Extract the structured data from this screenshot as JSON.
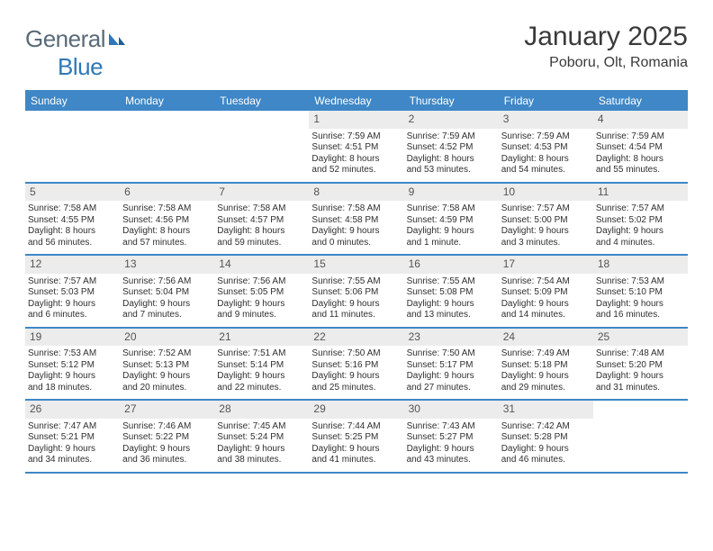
{
  "brand": {
    "part1": "General",
    "part2": "Blue"
  },
  "title": "January 2025",
  "location": "Poboru, Olt, Romania",
  "colors": {
    "header_bg": "#3f87c6",
    "daynum_bg": "#ececec",
    "rule": "#3f87c6",
    "text": "#2f2f2f",
    "title": "#3a3a3a",
    "logo_gray": "#5a6a78",
    "logo_blue": "#2f78b7"
  },
  "weekdays": [
    "Sunday",
    "Monday",
    "Tuesday",
    "Wednesday",
    "Thursday",
    "Friday",
    "Saturday"
  ],
  "cells": [
    {
      "day": "",
      "lines": [
        "",
        "",
        "",
        ""
      ]
    },
    {
      "day": "",
      "lines": [
        "",
        "",
        "",
        ""
      ]
    },
    {
      "day": "",
      "lines": [
        "",
        "",
        "",
        ""
      ]
    },
    {
      "day": "1",
      "lines": [
        "Sunrise: 7:59 AM",
        "Sunset: 4:51 PM",
        "Daylight: 8 hours",
        "and 52 minutes."
      ]
    },
    {
      "day": "2",
      "lines": [
        "Sunrise: 7:59 AM",
        "Sunset: 4:52 PM",
        "Daylight: 8 hours",
        "and 53 minutes."
      ]
    },
    {
      "day": "3",
      "lines": [
        "Sunrise: 7:59 AM",
        "Sunset: 4:53 PM",
        "Daylight: 8 hours",
        "and 54 minutes."
      ]
    },
    {
      "day": "4",
      "lines": [
        "Sunrise: 7:59 AM",
        "Sunset: 4:54 PM",
        "Daylight: 8 hours",
        "and 55 minutes."
      ]
    },
    {
      "day": "5",
      "lines": [
        "Sunrise: 7:58 AM",
        "Sunset: 4:55 PM",
        "Daylight: 8 hours",
        "and 56 minutes."
      ]
    },
    {
      "day": "6",
      "lines": [
        "Sunrise: 7:58 AM",
        "Sunset: 4:56 PM",
        "Daylight: 8 hours",
        "and 57 minutes."
      ]
    },
    {
      "day": "7",
      "lines": [
        "Sunrise: 7:58 AM",
        "Sunset: 4:57 PM",
        "Daylight: 8 hours",
        "and 59 minutes."
      ]
    },
    {
      "day": "8",
      "lines": [
        "Sunrise: 7:58 AM",
        "Sunset: 4:58 PM",
        "Daylight: 9 hours",
        "and 0 minutes."
      ]
    },
    {
      "day": "9",
      "lines": [
        "Sunrise: 7:58 AM",
        "Sunset: 4:59 PM",
        "Daylight: 9 hours",
        "and 1 minute."
      ]
    },
    {
      "day": "10",
      "lines": [
        "Sunrise: 7:57 AM",
        "Sunset: 5:00 PM",
        "Daylight: 9 hours",
        "and 3 minutes."
      ]
    },
    {
      "day": "11",
      "lines": [
        "Sunrise: 7:57 AM",
        "Sunset: 5:02 PM",
        "Daylight: 9 hours",
        "and 4 minutes."
      ]
    },
    {
      "day": "12",
      "lines": [
        "Sunrise: 7:57 AM",
        "Sunset: 5:03 PM",
        "Daylight: 9 hours",
        "and 6 minutes."
      ]
    },
    {
      "day": "13",
      "lines": [
        "Sunrise: 7:56 AM",
        "Sunset: 5:04 PM",
        "Daylight: 9 hours",
        "and 7 minutes."
      ]
    },
    {
      "day": "14",
      "lines": [
        "Sunrise: 7:56 AM",
        "Sunset: 5:05 PM",
        "Daylight: 9 hours",
        "and 9 minutes."
      ]
    },
    {
      "day": "15",
      "lines": [
        "Sunrise: 7:55 AM",
        "Sunset: 5:06 PM",
        "Daylight: 9 hours",
        "and 11 minutes."
      ]
    },
    {
      "day": "16",
      "lines": [
        "Sunrise: 7:55 AM",
        "Sunset: 5:08 PM",
        "Daylight: 9 hours",
        "and 13 minutes."
      ]
    },
    {
      "day": "17",
      "lines": [
        "Sunrise: 7:54 AM",
        "Sunset: 5:09 PM",
        "Daylight: 9 hours",
        "and 14 minutes."
      ]
    },
    {
      "day": "18",
      "lines": [
        "Sunrise: 7:53 AM",
        "Sunset: 5:10 PM",
        "Daylight: 9 hours",
        "and 16 minutes."
      ]
    },
    {
      "day": "19",
      "lines": [
        "Sunrise: 7:53 AM",
        "Sunset: 5:12 PM",
        "Daylight: 9 hours",
        "and 18 minutes."
      ]
    },
    {
      "day": "20",
      "lines": [
        "Sunrise: 7:52 AM",
        "Sunset: 5:13 PM",
        "Daylight: 9 hours",
        "and 20 minutes."
      ]
    },
    {
      "day": "21",
      "lines": [
        "Sunrise: 7:51 AM",
        "Sunset: 5:14 PM",
        "Daylight: 9 hours",
        "and 22 minutes."
      ]
    },
    {
      "day": "22",
      "lines": [
        "Sunrise: 7:50 AM",
        "Sunset: 5:16 PM",
        "Daylight: 9 hours",
        "and 25 minutes."
      ]
    },
    {
      "day": "23",
      "lines": [
        "Sunrise: 7:50 AM",
        "Sunset: 5:17 PM",
        "Daylight: 9 hours",
        "and 27 minutes."
      ]
    },
    {
      "day": "24",
      "lines": [
        "Sunrise: 7:49 AM",
        "Sunset: 5:18 PM",
        "Daylight: 9 hours",
        "and 29 minutes."
      ]
    },
    {
      "day": "25",
      "lines": [
        "Sunrise: 7:48 AM",
        "Sunset: 5:20 PM",
        "Daylight: 9 hours",
        "and 31 minutes."
      ]
    },
    {
      "day": "26",
      "lines": [
        "Sunrise: 7:47 AM",
        "Sunset: 5:21 PM",
        "Daylight: 9 hours",
        "and 34 minutes."
      ]
    },
    {
      "day": "27",
      "lines": [
        "Sunrise: 7:46 AM",
        "Sunset: 5:22 PM",
        "Daylight: 9 hours",
        "and 36 minutes."
      ]
    },
    {
      "day": "28",
      "lines": [
        "Sunrise: 7:45 AM",
        "Sunset: 5:24 PM",
        "Daylight: 9 hours",
        "and 38 minutes."
      ]
    },
    {
      "day": "29",
      "lines": [
        "Sunrise: 7:44 AM",
        "Sunset: 5:25 PM",
        "Daylight: 9 hours",
        "and 41 minutes."
      ]
    },
    {
      "day": "30",
      "lines": [
        "Sunrise: 7:43 AM",
        "Sunset: 5:27 PM",
        "Daylight: 9 hours",
        "and 43 minutes."
      ]
    },
    {
      "day": "31",
      "lines": [
        "Sunrise: 7:42 AM",
        "Sunset: 5:28 PM",
        "Daylight: 9 hours",
        "and 46 minutes."
      ]
    },
    {
      "day": "",
      "lines": [
        "",
        "",
        "",
        ""
      ]
    }
  ]
}
